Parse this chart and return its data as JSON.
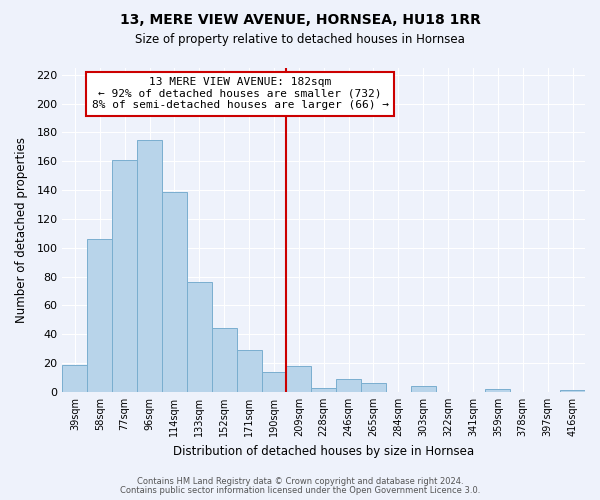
{
  "title": "13, MERE VIEW AVENUE, HORNSEA, HU18 1RR",
  "subtitle": "Size of property relative to detached houses in Hornsea",
  "xlabel": "Distribution of detached houses by size in Hornsea",
  "ylabel": "Number of detached properties",
  "bar_labels": [
    "39sqm",
    "58sqm",
    "77sqm",
    "96sqm",
    "114sqm",
    "133sqm",
    "152sqm",
    "171sqm",
    "190sqm",
    "209sqm",
    "228sqm",
    "246sqm",
    "265sqm",
    "284sqm",
    "303sqm",
    "322sqm",
    "341sqm",
    "359sqm",
    "378sqm",
    "397sqm",
    "416sqm"
  ],
  "bar_values": [
    19,
    106,
    161,
    175,
    139,
    76,
    44,
    29,
    14,
    18,
    3,
    9,
    6,
    0,
    4,
    0,
    0,
    2,
    0,
    0,
    1
  ],
  "bar_color": "#b8d4ea",
  "bar_edge_color": "#7aaecf",
  "vline_x": 8.5,
  "vline_color": "#cc0000",
  "annotation_title": "13 MERE VIEW AVENUE: 182sqm",
  "annotation_line1": "← 92% of detached houses are smaller (732)",
  "annotation_line2": "8% of semi-detached houses are larger (66) →",
  "annotation_box_edge": "#cc0000",
  "ylim": [
    0,
    225
  ],
  "yticks": [
    0,
    20,
    40,
    60,
    80,
    100,
    120,
    140,
    160,
    180,
    200,
    220
  ],
  "footer_line1": "Contains HM Land Registry data © Crown copyright and database right 2024.",
  "footer_line2": "Contains public sector information licensed under the Open Government Licence 3.0.",
  "bg_color": "#eef2fb"
}
